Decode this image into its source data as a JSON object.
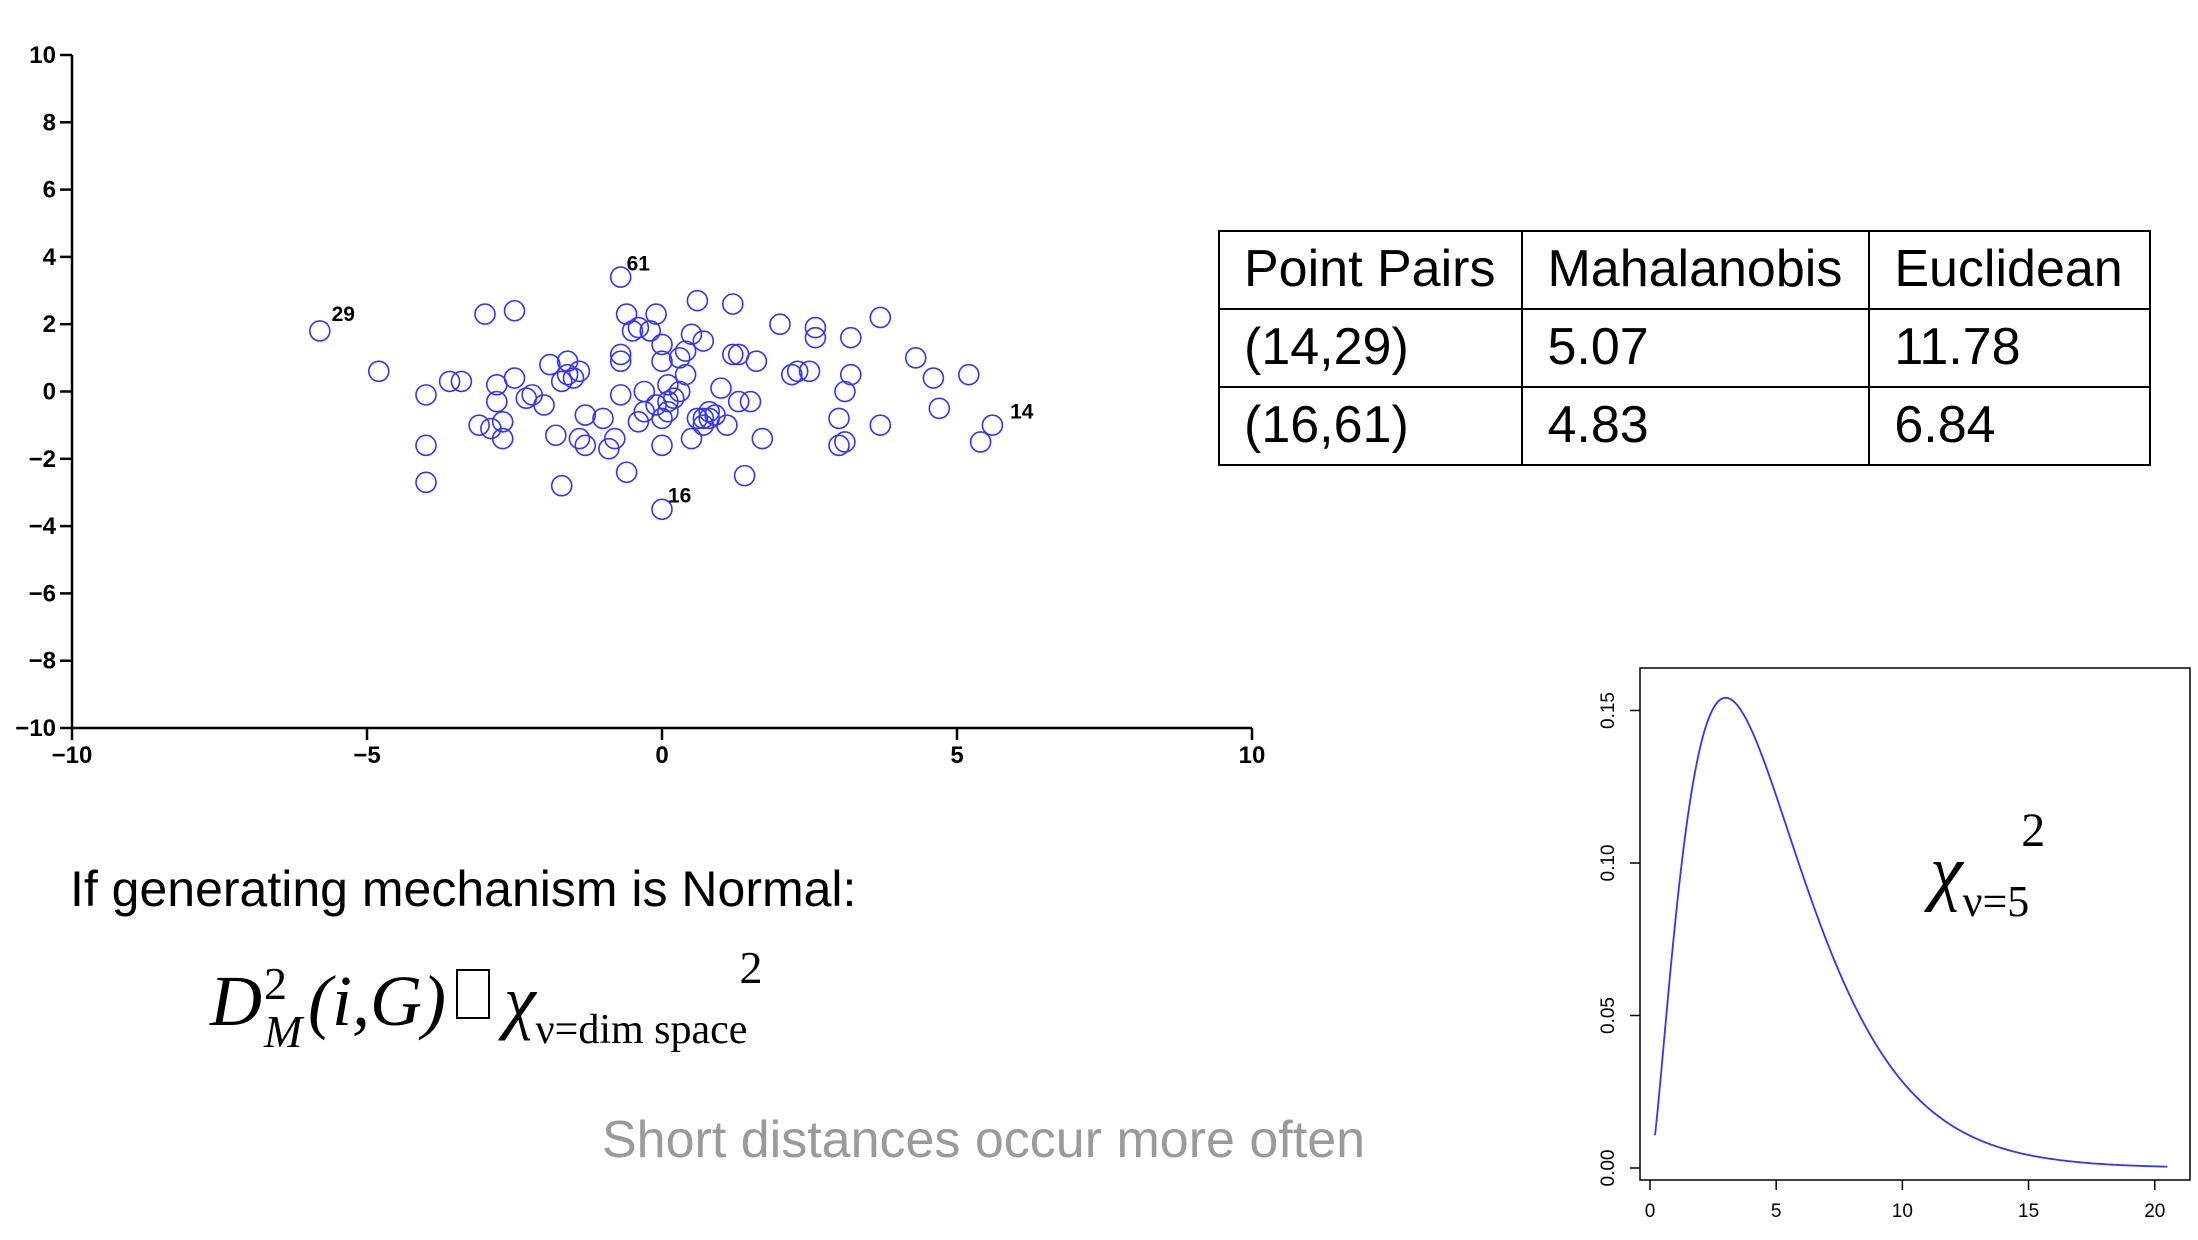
{
  "chart_data": [
    {
      "type": "scatter",
      "xlim": [
        -10,
        10
      ],
      "ylim": [
        -10,
        10
      ],
      "xticks": [
        -10,
        -5,
        0,
        5,
        10
      ],
      "yticks": [
        -10,
        -8,
        -6,
        -4,
        -2,
        0,
        2,
        4,
        6,
        8,
        10
      ],
      "xtick_labels": [
        "−10",
        "−5",
        "0",
        "5",
        "10"
      ],
      "ytick_labels": [
        "−10",
        "−8",
        "−6",
        "−4",
        "−2",
        "0",
        "2",
        "4",
        "6",
        "8",
        "10"
      ],
      "marker_color": "#3333ff",
      "points": [
        [
          -5.8,
          1.8
        ],
        [
          -4.8,
          0.6
        ],
        [
          -4.0,
          -0.1
        ],
        [
          -3.6,
          0.3
        ],
        [
          -3.4,
          0.3
        ],
        [
          -3.1,
          -1.0
        ],
        [
          -3.0,
          2.3
        ],
        [
          -2.9,
          -1.1
        ],
        [
          -2.8,
          0.2
        ],
        [
          -2.8,
          -0.3
        ],
        [
          -2.7,
          -0.9
        ],
        [
          -2.7,
          -1.4
        ],
        [
          -2.5,
          2.4
        ],
        [
          -2.5,
          0.4
        ],
        [
          -2.3,
          -0.2
        ],
        [
          -2.2,
          -0.1
        ],
        [
          -2.0,
          -0.4
        ],
        [
          -1.9,
          0.8
        ],
        [
          -1.8,
          -1.3
        ],
        [
          -1.7,
          0.3
        ],
        [
          -1.6,
          0.5
        ],
        [
          -1.6,
          0.9
        ],
        [
          -1.5,
          0.4
        ],
        [
          -1.4,
          0.6
        ],
        [
          -1.4,
          -1.4
        ],
        [
          -1.3,
          -1.6
        ],
        [
          -1.3,
          -0.7
        ],
        [
          -1.0,
          -0.8
        ],
        [
          -0.9,
          -1.7
        ],
        [
          -0.8,
          -1.4
        ],
        [
          -0.7,
          1.1
        ],
        [
          -0.7,
          0.9
        ],
        [
          -0.7,
          -0.1
        ],
        [
          -0.6,
          2.3
        ],
        [
          -0.5,
          1.8
        ],
        [
          -0.4,
          1.9
        ],
        [
          -0.4,
          -0.9
        ],
        [
          -0.3,
          0.0
        ],
        [
          -0.3,
          -0.6
        ],
        [
          -0.2,
          1.8
        ],
        [
          -0.1,
          2.3
        ],
        [
          -0.1,
          -0.4
        ],
        [
          0.0,
          1.4
        ],
        [
          0.0,
          0.9
        ],
        [
          0.0,
          -0.8
        ],
        [
          0.0,
          -1.6
        ],
        [
          0.1,
          -0.6
        ],
        [
          0.1,
          -0.3
        ],
        [
          0.1,
          0.2
        ],
        [
          0.2,
          -0.2
        ],
        [
          0.3,
          1.0
        ],
        [
          0.3,
          0.0
        ],
        [
          0.4,
          1.2
        ],
        [
          0.4,
          0.5
        ],
        [
          0.5,
          -1.4
        ],
        [
          0.5,
          1.7
        ],
        [
          0.6,
          2.7
        ],
        [
          0.6,
          -0.8
        ],
        [
          0.7,
          1.5
        ],
        [
          0.7,
          -0.8
        ],
        [
          0.7,
          -1.0
        ],
        [
          0.8,
          -0.6
        ],
        [
          0.8,
          -0.8
        ],
        [
          0.9,
          -0.7
        ],
        [
          1.0,
          0.1
        ],
        [
          1.1,
          -1.0
        ],
        [
          1.2,
          2.6
        ],
        [
          1.2,
          1.1
        ],
        [
          1.3,
          1.1
        ],
        [
          1.3,
          -0.3
        ],
        [
          1.4,
          -2.5
        ],
        [
          1.5,
          -0.3
        ],
        [
          1.6,
          0.9
        ],
        [
          1.7,
          -1.4
        ],
        [
          2.0,
          2.0
        ],
        [
          2.2,
          0.5
        ],
        [
          2.3,
          0.6
        ],
        [
          2.5,
          0.6
        ],
        [
          2.6,
          1.6
        ],
        [
          2.6,
          1.9
        ],
        [
          3.0,
          -0.8
        ],
        [
          3.0,
          -1.6
        ],
        [
          3.1,
          0.0
        ],
        [
          3.1,
          -1.5
        ],
        [
          3.2,
          0.5
        ],
        [
          3.2,
          1.6
        ],
        [
          3.7,
          2.2
        ],
        [
          3.7,
          -1.0
        ],
        [
          4.3,
          1.0
        ],
        [
          4.6,
          0.4
        ],
        [
          4.7,
          -0.5
        ],
        [
          5.2,
          0.5
        ],
        [
          5.6,
          -1.0
        ],
        [
          5.4,
          -1.5
        ],
        [
          -4.0,
          -1.6
        ],
        [
          -4.0,
          -2.7
        ],
        [
          -1.7,
          -2.8
        ],
        [
          -0.6,
          -2.4
        ],
        [
          -0.7,
          3.4
        ],
        [
          0.0,
          -3.5
        ]
      ],
      "annotations": [
        {
          "text": "61",
          "x": -0.6,
          "y": 3.6
        },
        {
          "text": "29",
          "x": -5.6,
          "y": 2.1
        },
        {
          "text": "14",
          "x": 5.9,
          "y": -0.8
        },
        {
          "text": "16",
          "x": 0.1,
          "y": -3.3
        }
      ]
    },
    {
      "type": "line",
      "xlim": [
        0,
        21
      ],
      "ylim": [
        0,
        0.16
      ],
      "xticks": [
        0,
        5,
        10,
        15,
        20
      ],
      "yticks": [
        0.0,
        0.05,
        0.1,
        0.15
      ],
      "xtick_labels": [
        "0",
        "5",
        "10",
        "15",
        "20"
      ],
      "ytick_labels": [
        "0.00",
        "0.05",
        "0.10",
        "0.15"
      ],
      "line_color": "#3333ff",
      "curve": {
        "distribution": "chi-squared",
        "df": 5,
        "x_range": [
          0.2,
          20.5
        ]
      }
    }
  ],
  "table": {
    "headers": [
      "Point Pairs",
      "Mahalanobis",
      "Euclidean"
    ],
    "rows": [
      [
        "(14,29)",
        "5.07",
        "11.78"
      ],
      [
        "(16,61)",
        "4.83",
        "6.84"
      ]
    ]
  },
  "text": {
    "normal_caption": "If generating mechanism  is Normal:",
    "short_caption": "Short distances occur more often",
    "formula": {
      "D": "D",
      "sup2": "2",
      "subM": "M",
      "args": "(i,G)",
      "chi": "χ",
      "chi_sub": "ν=dim space",
      "chi_sup": "2"
    },
    "chi_label": {
      "chi": "χ",
      "sub": "ν=5",
      "sup": "2"
    }
  }
}
